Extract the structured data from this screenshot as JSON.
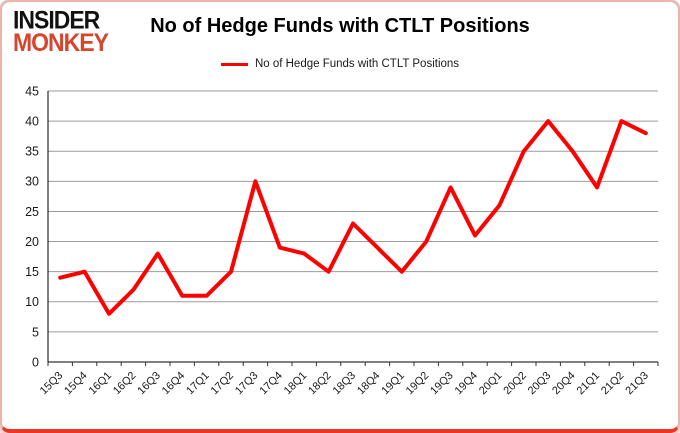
{
  "logo": {
    "line1": "INSIDER",
    "line2": "MONKEY",
    "insider_color": "#111111",
    "monkey_color": "#d6452e"
  },
  "header": {
    "title": "No of Hedge Funds with CTLT Positions"
  },
  "legend": {
    "label": "No of Hedge Funds with CTLT Positions",
    "line_color": "#ff0000"
  },
  "chart_data": {
    "type": "line",
    "title": "No of Hedge Funds with CTLT Positions",
    "categories": [
      "15Q3",
      "15Q4",
      "16Q1",
      "16Q2",
      "16Q3",
      "16Q4",
      "17Q1",
      "17Q2",
      "17Q3",
      "17Q4",
      "18Q1",
      "18Q2",
      "18Q3",
      "18Q4",
      "19Q1",
      "19Q2",
      "19Q3",
      "19Q4",
      "20Q1",
      "20Q2",
      "20Q3",
      "20Q4",
      "21Q1",
      "21Q2",
      "21Q3"
    ],
    "series": [
      {
        "name": "No of Hedge Funds with CTLT Positions",
        "color": "#ff0000",
        "values": [
          14,
          15,
          8,
          12,
          18,
          11,
          11,
          15,
          30,
          19,
          18,
          15,
          23,
          19,
          15,
          20,
          29,
          21,
          26,
          35,
          40,
          35,
          29,
          40,
          38
        ]
      }
    ],
    "xlabel": "",
    "ylabel": "",
    "ylim": [
      0,
      45
    ],
    "ytick_step": 5,
    "yticks": [
      0,
      5,
      10,
      15,
      20,
      25,
      30,
      35,
      40,
      45
    ],
    "grid": true,
    "legend_position": "top",
    "x_label_rotation": -45,
    "gridline_color": "#9b9b9b",
    "axis_color": "#000000",
    "tick_label_color": "#1a1a1a"
  }
}
